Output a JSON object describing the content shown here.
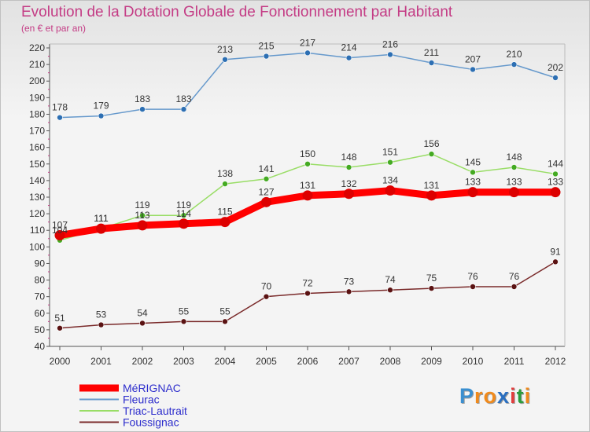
{
  "chart_data": {
    "type": "line",
    "title": "Evolution de la Dotation Globale de Fonctionnement par Habitant",
    "subtitle": "(en € et par an)",
    "xlabel": "",
    "ylabel": "",
    "ylim": [
      40,
      220
    ],
    "ytick_step": 10,
    "grid": false,
    "legend_position": "bottom-left",
    "categories": [
      "2000",
      "2001",
      "2002",
      "2003",
      "2004",
      "2005",
      "2006",
      "2007",
      "2008",
      "2009",
      "2010",
      "2011",
      "2012"
    ],
    "series": [
      {
        "name": "MéRIGNAC",
        "color": "#ff0000",
        "emphasis": true,
        "values": [
          107,
          111,
          113,
          114,
          115,
          127,
          131,
          132,
          134,
          131,
          133,
          133,
          133
        ]
      },
      {
        "name": "Fleurac",
        "color": "#6699cc",
        "emphasis": false,
        "values": [
          178,
          179,
          183,
          183,
          213,
          215,
          217,
          214,
          216,
          211,
          207,
          210,
          202
        ]
      },
      {
        "name": "Triac-Lautrait",
        "color": "#99dd66",
        "emphasis": false,
        "values": [
          104,
          111,
          119,
          119,
          138,
          141,
          150,
          148,
          151,
          156,
          145,
          148,
          144
        ]
      },
      {
        "name": "Foussignac",
        "color": "#7a2a2a",
        "emphasis": false,
        "values": [
          51,
          53,
          54,
          55,
          55,
          70,
          72,
          73,
          74,
          75,
          76,
          76,
          91
        ]
      }
    ]
  },
  "branding": {
    "logo_letters": [
      "P",
      "r",
      "o",
      "x",
      "i",
      "t",
      "i"
    ],
    "logo_colors": [
      "#3a8fd0",
      "#f08a1c",
      "#f08a1c",
      "#2a6fc0",
      "#e23c3c",
      "#2a9c3c",
      "#f08a1c"
    ]
  }
}
